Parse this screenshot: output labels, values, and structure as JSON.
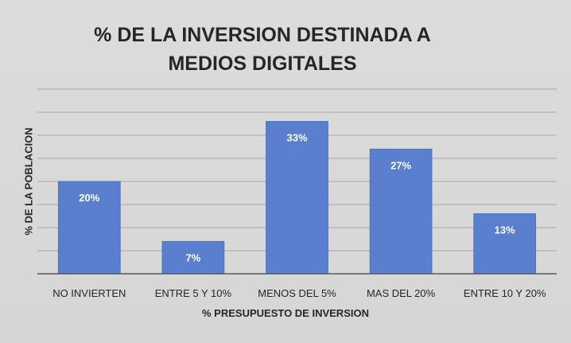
{
  "chart_data": {
    "type": "bar",
    "title": "% DE LA INVERSION DESTINADA A MEDIOS DIGITALES",
    "title_lines": [
      "% DE LA INVERSION DESTINADA A",
      "MEDIOS DIGITALES"
    ],
    "xlabel": "% PRESUPUESTO DE INVERSION",
    "ylabel": "% DE LA POBLACION",
    "categories": [
      "NO INVIERTEN",
      "ENTRE 5 Y 10%",
      "MENOS DEL 5%",
      "MAS DEL 20%",
      "ENTRE 10 Y 20%"
    ],
    "values": [
      20,
      7,
      33,
      27,
      13
    ],
    "data_labels": [
      "20%",
      "7%",
      "33%",
      "27%",
      "13%"
    ],
    "ylim": [
      0,
      40
    ],
    "grid": true,
    "legend": "none",
    "colors": {
      "bar": "#5b7fcf",
      "bar_edge": "#4f72bf",
      "grid": "#a6a6a6",
      "axis": "#595959",
      "background": "#d9d9d9"
    }
  }
}
